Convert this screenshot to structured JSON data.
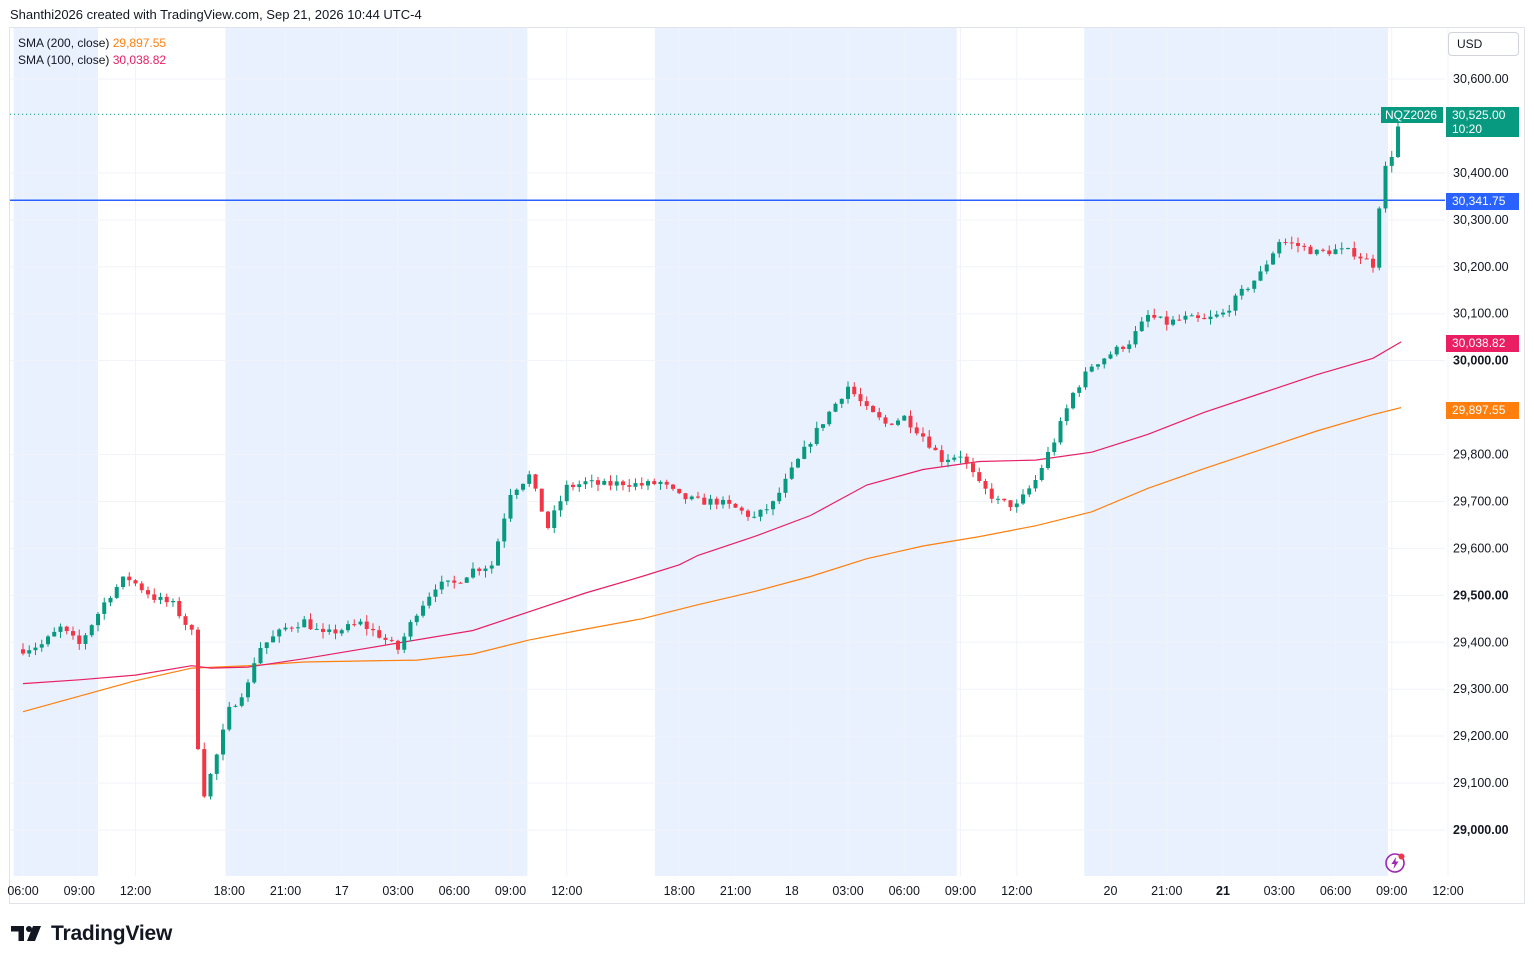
{
  "header": {
    "text": "Shanthi2026 created with TradingView.com, Sep 21, 2026 10:44 UTC-4"
  },
  "legend": [
    {
      "label": "SMA (200, close)",
      "value": "29,897.55",
      "color": "#ff7f0e"
    },
    {
      "label": "SMA (100, close)",
      "value": "30,038.82",
      "color": "#e91e63"
    }
  ],
  "axis": {
    "currency": "USD",
    "y_ticks": [
      {
        "value": 30600,
        "label": "30,600.00"
      },
      {
        "value": 30400,
        "label": "30,400.00"
      },
      {
        "value": 30300,
        "label": "30,300.00"
      },
      {
        "value": 30200,
        "label": "30,200.00"
      },
      {
        "value": 30100,
        "label": "30,100.00"
      },
      {
        "value": 30000,
        "label": "30,000.00",
        "bold": true
      },
      {
        "value": 29800,
        "label": "29,800.00"
      },
      {
        "value": 29700,
        "label": "29,700.00"
      },
      {
        "value": 29600,
        "label": "29,600.00"
      },
      {
        "value": 29500,
        "label": "29,500.00",
        "bold": true
      },
      {
        "value": 29400,
        "label": "29,400.00"
      },
      {
        "value": 29300,
        "label": "29,300.00"
      },
      {
        "value": 29200,
        "label": "29,200.00"
      },
      {
        "value": 29100,
        "label": "29,100.00"
      },
      {
        "value": 29000,
        "label": "29,000.00",
        "bold": true
      }
    ],
    "x_ticks": [
      {
        "t": 0,
        "label": "06:00"
      },
      {
        "t": 3,
        "label": "09:00"
      },
      {
        "t": 6,
        "label": "12:00"
      },
      {
        "t": 11,
        "label": "18:00"
      },
      {
        "t": 14,
        "label": "21:00"
      },
      {
        "t": 17,
        "label": "17"
      },
      {
        "t": 20,
        "label": "03:00"
      },
      {
        "t": 23,
        "label": "06:00"
      },
      {
        "t": 26,
        "label": "09:00"
      },
      {
        "t": 29,
        "label": "12:00"
      },
      {
        "t": 35,
        "label": "18:00"
      },
      {
        "t": 38,
        "label": "21:00"
      },
      {
        "t": 41,
        "label": "18"
      },
      {
        "t": 44,
        "label": "03:00"
      },
      {
        "t": 47,
        "label": "06:00"
      },
      {
        "t": 50,
        "label": "09:00"
      },
      {
        "t": 53,
        "label": "12:00"
      },
      {
        "t": 58,
        "label": "20"
      },
      {
        "t": 61,
        "label": "21:00"
      },
      {
        "t": 64,
        "label": "21",
        "bold": true
      },
      {
        "t": 67,
        "label": "03:00"
      },
      {
        "t": 70,
        "label": "06:00"
      },
      {
        "t": 73,
        "label": "09:00"
      },
      {
        "t": 76,
        "label": "12:00"
      }
    ]
  },
  "tags": {
    "symbol": "NQZ2026",
    "last_price": "30,525.00",
    "countdown": "10:20",
    "hline_price": "30,341.75",
    "sma100_price": "30,038.82",
    "sma200_price": "29,897.55"
  },
  "colors": {
    "up": "#089981",
    "down": "#f23645",
    "sma200": "#ff7f0e",
    "sma100": "#e91e63",
    "hline": "#2962ff",
    "session_bg": "#eaf1fe",
    "grid": "#f0f3fa"
  },
  "footer": {
    "brand": "TradingView"
  },
  "chart_data": {
    "type": "candlestick",
    "title": "",
    "symbol": "NQZ2026",
    "x_unit": "hours from Sep 16 06:00",
    "y_unit": "USD",
    "ylim": [
      28930,
      30660
    ],
    "xlim": [
      0,
      77.5
    ],
    "horizontal_line": 30341.75,
    "last_price": 30525.0,
    "sessions": [
      [
        -0.5,
        4.0
      ],
      [
        10.8,
        26.9
      ],
      [
        33.7,
        49.8
      ],
      [
        56.6,
        72.8
      ]
    ],
    "series": [
      {
        "name": "SMA (200, close)",
        "color": "#ff7f0e",
        "points": [
          [
            0,
            29252
          ],
          [
            3,
            29285
          ],
          [
            6,
            29318
          ],
          [
            9,
            29345
          ],
          [
            12,
            29350
          ],
          [
            15,
            29358
          ],
          [
            18,
            29360
          ],
          [
            21,
            29362
          ],
          [
            24,
            29375
          ],
          [
            27,
            29405
          ],
          [
            30,
            29428
          ],
          [
            33,
            29450
          ],
          [
            36,
            29480
          ],
          [
            39,
            29508
          ],
          [
            42,
            29540
          ],
          [
            45,
            29578
          ],
          [
            48,
            29605
          ],
          [
            51,
            29625
          ],
          [
            54,
            29648
          ],
          [
            57,
            29678
          ],
          [
            60,
            29728
          ],
          [
            63,
            29770
          ],
          [
            66,
            29810
          ],
          [
            69,
            29850
          ],
          [
            72,
            29885
          ],
          [
            73.5,
            29900
          ]
        ]
      },
      {
        "name": "SMA (100, close)",
        "color": "#e91e63",
        "points": [
          [
            0,
            29312
          ],
          [
            3,
            29320
          ],
          [
            6,
            29330
          ],
          [
            9,
            29350
          ],
          [
            10,
            29345
          ],
          [
            12,
            29347
          ],
          [
            15,
            29365
          ],
          [
            18,
            29385
          ],
          [
            21,
            29405
          ],
          [
            24,
            29425
          ],
          [
            27,
            29465
          ],
          [
            30,
            29505
          ],
          [
            33,
            29540
          ],
          [
            35,
            29565
          ],
          [
            36,
            29585
          ],
          [
            39,
            29625
          ],
          [
            42,
            29670
          ],
          [
            45,
            29735
          ],
          [
            48,
            29768
          ],
          [
            51,
            29785
          ],
          [
            54,
            29788
          ],
          [
            57,
            29805
          ],
          [
            60,
            29843
          ],
          [
            63,
            29890
          ],
          [
            66,
            29930
          ],
          [
            69,
            29970
          ],
          [
            72,
            30005
          ],
          [
            73.5,
            30040
          ]
        ]
      }
    ],
    "ohlc_anchors": [
      [
        0,
        29385
      ],
      [
        1,
        29395
      ],
      [
        2,
        29430
      ],
      [
        3,
        29395
      ],
      [
        4.5,
        29495
      ],
      [
        5.5,
        29540
      ],
      [
        7,
        29495
      ],
      [
        8,
        29480
      ],
      [
        9,
        29420
      ],
      [
        9.5,
        29060
      ],
      [
        10.2,
        29140
      ],
      [
        11,
        29255
      ],
      [
        12,
        29310
      ],
      [
        12.5,
        29385
      ],
      [
        14,
        29430
      ],
      [
        15,
        29445
      ],
      [
        16,
        29415
      ],
      [
        18,
        29440
      ],
      [
        19,
        29415
      ],
      [
        20,
        29385
      ],
      [
        21,
        29465
      ],
      [
        22,
        29520
      ],
      [
        23,
        29525
      ],
      [
        24,
        29555
      ],
      [
        25,
        29565
      ],
      [
        26,
        29720
      ],
      [
        27,
        29755
      ],
      [
        28,
        29645
      ],
      [
        29,
        29730
      ],
      [
        30,
        29740
      ],
      [
        31,
        29735
      ],
      [
        32,
        29740
      ],
      [
        33,
        29735
      ],
      [
        34,
        29740
      ],
      [
        35,
        29710
      ],
      [
        36,
        29700
      ],
      [
        37,
        29700
      ],
      [
        38,
        29685
      ],
      [
        39,
        29665
      ],
      [
        40,
        29695
      ],
      [
        41,
        29765
      ],
      [
        42,
        29830
      ],
      [
        43,
        29890
      ],
      [
        44,
        29945
      ],
      [
        45,
        29895
      ],
      [
        46,
        29865
      ],
      [
        47,
        29880
      ],
      [
        48,
        29840
      ],
      [
        49,
        29790
      ],
      [
        50,
        29800
      ],
      [
        51,
        29735
      ],
      [
        52,
        29700
      ],
      [
        53,
        29690
      ],
      [
        54,
        29745
      ],
      [
        55,
        29830
      ],
      [
        56,
        29930
      ],
      [
        57,
        29990
      ],
      [
        58,
        30015
      ],
      [
        59,
        30040
      ],
      [
        60,
        30095
      ],
      [
        61,
        30080
      ],
      [
        62,
        30090
      ],
      [
        63,
        30085
      ],
      [
        64,
        30100
      ],
      [
        65,
        30145
      ],
      [
        66,
        30185
      ],
      [
        67,
        30255
      ],
      [
        68,
        30245
      ],
      [
        69,
        30230
      ],
      [
        70,
        30235
      ],
      [
        71,
        30230
      ],
      [
        72,
        30205
      ],
      [
        72.5,
        30395
      ],
      [
        73,
        30440
      ],
      [
        73.5,
        30525
      ]
    ]
  }
}
